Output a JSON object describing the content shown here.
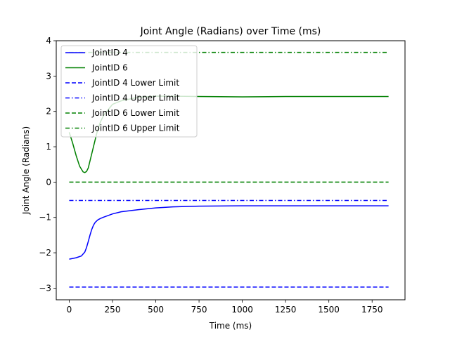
{
  "chart_data": {
    "type": "line",
    "title": "Joint Angle (Radians) over Time (ms)",
    "xlabel": "Time (ms)",
    "ylabel": "Joint Angle (Radians)",
    "xlim": [
      -75,
      1940
    ],
    "ylim": [
      -3.33,
      4.0
    ],
    "xticks": [
      0,
      250,
      500,
      750,
      1000,
      1250,
      1500,
      1750
    ],
    "xtick_labels": [
      "0",
      "250",
      "500",
      "750",
      "1000",
      "1250",
      "1500",
      "1750"
    ],
    "yticks": [
      -3,
      -2,
      -1,
      0,
      1,
      2,
      3,
      4
    ],
    "ytick_labels": [
      "−3",
      "−2",
      "−1",
      "0",
      "1",
      "2",
      "3",
      "4"
    ],
    "grid": false,
    "legend_position": "upper-left",
    "series": [
      {
        "name": "JointID 4",
        "color": "#0000ff",
        "dash": "solid",
        "x": [
          0,
          40,
          70,
          90,
          100,
          110,
          120,
          130,
          140,
          150,
          165,
          180,
          200,
          250,
          300,
          400,
          500,
          600,
          750,
          1000,
          1250,
          1500,
          1750,
          1845
        ],
        "y": [
          -2.18,
          -2.14,
          -2.09,
          -1.98,
          -1.85,
          -1.68,
          -1.5,
          -1.34,
          -1.22,
          -1.14,
          -1.07,
          -1.03,
          -0.99,
          -0.9,
          -0.84,
          -0.78,
          -0.73,
          -0.7,
          -0.68,
          -0.67,
          -0.67,
          -0.67,
          -0.67,
          -0.67
        ]
      },
      {
        "name": "JointID 6",
        "color": "#008000",
        "dash": "solid",
        "x": [
          0,
          20,
          40,
          60,
          80,
          90,
          100,
          110,
          120,
          140,
          160,
          180,
          200,
          250,
          300,
          400,
          500,
          600,
          750,
          1000,
          1250,
          1500,
          1750,
          1845
        ],
        "y": [
          1.41,
          1.1,
          0.75,
          0.45,
          0.29,
          0.27,
          0.3,
          0.4,
          0.6,
          1.0,
          1.4,
          1.7,
          1.9,
          2.2,
          2.3,
          2.4,
          2.43,
          2.43,
          2.42,
          2.41,
          2.42,
          2.42,
          2.42,
          2.42
        ]
      },
      {
        "name": "JointID 4 Lower Limit",
        "color": "#0000ff",
        "dash": "dashed",
        "x": [
          0,
          1845
        ],
        "y": [
          -2.97,
          -2.97
        ]
      },
      {
        "name": "JointID 4 Upper Limit",
        "color": "#0000ff",
        "dash": "dashdot",
        "x": [
          0,
          1845
        ],
        "y": [
          -0.52,
          -0.52
        ]
      },
      {
        "name": "JointID 6 Lower Limit",
        "color": "#008000",
        "dash": "dashed",
        "x": [
          0,
          1845
        ],
        "y": [
          0.0,
          0.0
        ]
      },
      {
        "name": "JointID 6 Upper Limit",
        "color": "#008000",
        "dash": "dashdot",
        "x": [
          0,
          1845
        ],
        "y": [
          3.67,
          3.67
        ]
      }
    ]
  }
}
